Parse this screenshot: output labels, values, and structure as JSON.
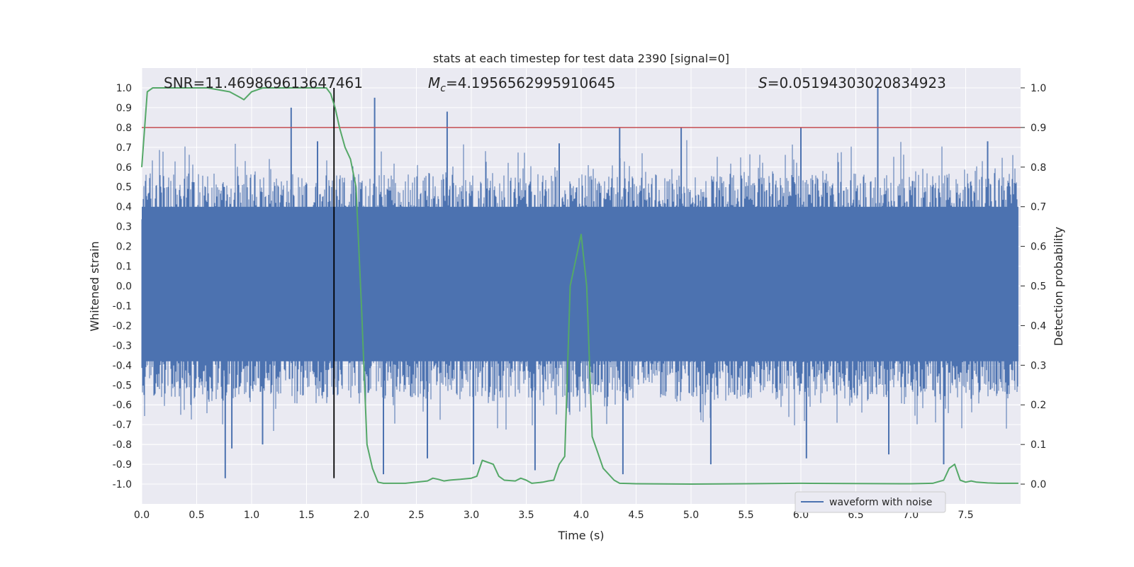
{
  "chart_data": {
    "type": "line",
    "title": "stats at each timestep for test data 2390 [signal=0]",
    "xlabel": "Time (s)",
    "ylabel": "Whitened strain",
    "ylabel_right": "Detection probability",
    "xlim": [
      0.0,
      8.0
    ],
    "ylim": [
      -1.1,
      1.1
    ],
    "ylim_right": [
      -0.05,
      1.05
    ],
    "xticks": [
      "0.0",
      "0.5",
      "1.0",
      "1.5",
      "2.0",
      "2.5",
      "3.0",
      "3.5",
      "4.0",
      "4.5",
      "5.0",
      "5.5",
      "6.0",
      "6.5",
      "7.0",
      "7.5"
    ],
    "yticks": [
      "1.0",
      "0.9",
      "0.8",
      "0.7",
      "0.6",
      "0.5",
      "0.4",
      "0.3",
      "0.2",
      "0.1",
      "0.0",
      "-0.1",
      "-0.2",
      "-0.3",
      "-0.4",
      "-0.5",
      "-0.6",
      "-0.7",
      "-0.8",
      "-0.9",
      "-1.0"
    ],
    "yticks_right": [
      "1.0",
      "0.9",
      "0.8",
      "0.7",
      "0.6",
      "0.5",
      "0.4",
      "0.3",
      "0.2",
      "0.1",
      "0.0"
    ],
    "grid": true,
    "legend_position": "lower-right",
    "annotations": {
      "snr": "SNR=11.469869613647461",
      "mc_symbol": "M",
      "mc_sub": "c",
      "mc_value": "=4.1956562995910645",
      "s_symbol": "S",
      "s_value": "=0.05194303020834923"
    },
    "series": [
      {
        "name": "waveform with noise",
        "kind": "noise-band",
        "axis": "left",
        "color": "#4c72b0",
        "x_range": [
          0.0,
          7.98
        ],
        "dense_band": [
          -0.38,
          0.4
        ],
        "spike_peaks_positive": [
          [
            0.75,
            0.5
          ],
          [
            1.36,
            0.9
          ],
          [
            1.6,
            0.73
          ],
          [
            2.12,
            0.95
          ],
          [
            2.78,
            0.88
          ],
          [
            3.8,
            0.72
          ],
          [
            4.35,
            0.8
          ],
          [
            4.91,
            0.8
          ],
          [
            6.0,
            0.8
          ],
          [
            6.7,
            1.0
          ],
          [
            7.7,
            0.73
          ]
        ],
        "spike_peaks_negative": [
          [
            0.76,
            -0.97
          ],
          [
            0.82,
            -0.82
          ],
          [
            1.1,
            -0.8
          ],
          [
            2.2,
            -0.95
          ],
          [
            2.6,
            -0.87
          ],
          [
            3.02,
            -0.9
          ],
          [
            3.58,
            -0.93
          ],
          [
            4.38,
            -0.95
          ],
          [
            5.18,
            -0.9
          ],
          [
            6.05,
            -0.87
          ],
          [
            6.8,
            -0.85
          ],
          [
            7.3,
            -0.9
          ]
        ]
      },
      {
        "name": "",
        "kind": "probability",
        "axis": "right",
        "color": "#55a868",
        "x": [
          0.0,
          0.05,
          0.1,
          0.2,
          0.4,
          0.6,
          0.8,
          0.9,
          0.93,
          1.0,
          1.05,
          1.1,
          1.2,
          1.4,
          1.6,
          1.68,
          1.72,
          1.76,
          1.8,
          1.85,
          1.9,
          1.95,
          2.0,
          2.05,
          2.1,
          2.15,
          2.2,
          2.4,
          2.5,
          2.6,
          2.65,
          2.7,
          2.75,
          2.8,
          2.9,
          3.0,
          3.05,
          3.1,
          3.2,
          3.25,
          3.3,
          3.4,
          3.45,
          3.5,
          3.55,
          3.65,
          3.7,
          3.75,
          3.8,
          3.85,
          3.9,
          4.0,
          4.05,
          4.1,
          4.15,
          4.2,
          4.3,
          4.35,
          4.5,
          5.0,
          5.5,
          6.0,
          7.0,
          7.2,
          7.3,
          7.35,
          7.4,
          7.45,
          7.5,
          7.55,
          7.6,
          7.7,
          7.8,
          7.9,
          7.98
        ],
        "y": [
          0.8,
          0.99,
          1.0,
          1.0,
          1.0,
          1.0,
          0.99,
          0.975,
          0.97,
          0.99,
          0.995,
          1.0,
          1.0,
          1.0,
          1.0,
          1.0,
          0.985,
          0.95,
          0.9,
          0.85,
          0.82,
          0.75,
          0.45,
          0.1,
          0.04,
          0.005,
          0.002,
          0.002,
          0.005,
          0.008,
          0.015,
          0.012,
          0.008,
          0.01,
          0.012,
          0.015,
          0.02,
          0.06,
          0.05,
          0.02,
          0.01,
          0.008,
          0.015,
          0.01,
          0.002,
          0.005,
          0.008,
          0.01,
          0.05,
          0.07,
          0.5,
          0.63,
          0.5,
          0.12,
          0.08,
          0.04,
          0.01,
          0.002,
          0.001,
          0.0,
          0.001,
          0.002,
          0.001,
          0.002,
          0.01,
          0.04,
          0.05,
          0.01,
          0.005,
          0.008,
          0.005,
          0.003,
          0.002,
          0.002,
          0.002
        ]
      }
    ],
    "reference_lines": {
      "horizontal_left_y": 0.8,
      "horizontal_color": "#c44e52",
      "vertical_x": 1.75,
      "vertical_color": "#000000",
      "vertical_y_range": [
        -0.97,
        1.0
      ]
    }
  }
}
